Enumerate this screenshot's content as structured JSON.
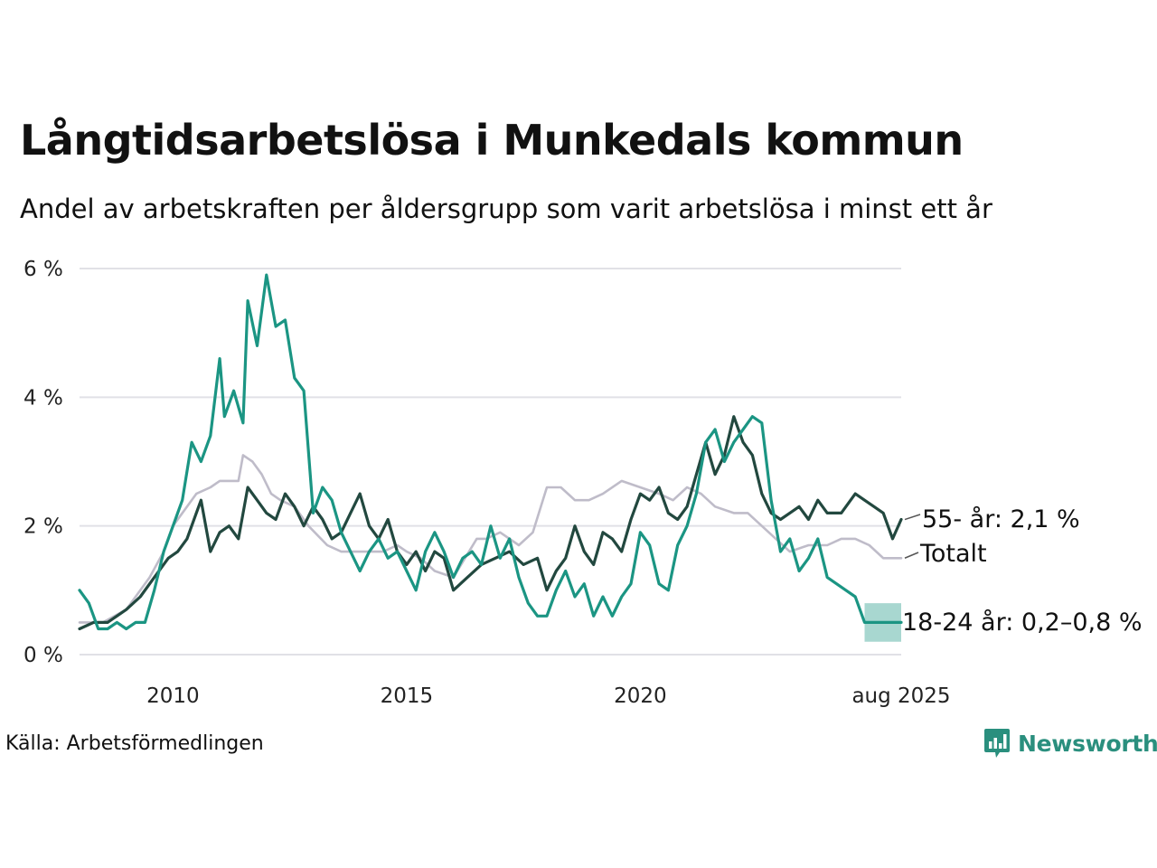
{
  "title": "Långtidsarbetslösa i Munkedals kommun",
  "subtitle": "Andel av arbetskraften per åldersgrupp som varit arbetslösa i minst ett år",
  "source": "Källa: Arbetsförmedlingen",
  "brand": "Newsworthy",
  "chart_data": {
    "type": "line",
    "title": "Långtidsarbetslösa i Munkedals kommun",
    "subtitle": "Andel av arbetskraften per åldersgrupp som varit arbetslösa i minst ett år",
    "xlabel": "",
    "ylabel": "",
    "x_range": [
      2008.0,
      2025.583
    ],
    "ylim": [
      0,
      6
    ],
    "y_ticks": [
      0,
      2,
      4,
      6
    ],
    "y_tick_labels": [
      "0 %",
      "2 %",
      "4 %",
      "6 %"
    ],
    "x_ticks": [
      2010,
      2015,
      2020,
      2025.583
    ],
    "x_tick_labels": [
      "2010",
      "2015",
      "2020",
      "aug 2025"
    ],
    "grid": true,
    "legend": "end-of-line labels",
    "colors": {
      "young": "#1b9583",
      "old": "#22483f",
      "total": "#bfbcc9",
      "band": "#1b9583"
    },
    "series": [
      {
        "key": "total",
        "name": "Totalt",
        "end_label": "Totalt",
        "points": [
          [
            2008.0,
            0.5
          ],
          [
            2008.5,
            0.5
          ],
          [
            2009.0,
            0.7
          ],
          [
            2009.5,
            1.2
          ],
          [
            2009.8,
            1.6
          ],
          [
            2010.0,
            2.0
          ],
          [
            2010.5,
            2.5
          ],
          [
            2010.8,
            2.6
          ],
          [
            2011.0,
            2.7
          ],
          [
            2011.4,
            2.7
          ],
          [
            2011.5,
            3.1
          ],
          [
            2011.7,
            3.0
          ],
          [
            2011.9,
            2.8
          ],
          [
            2012.1,
            2.5
          ],
          [
            2012.3,
            2.4
          ],
          [
            2012.6,
            2.3
          ],
          [
            2012.9,
            2.0
          ],
          [
            2013.3,
            1.7
          ],
          [
            2013.6,
            1.6
          ],
          [
            2014.0,
            1.6
          ],
          [
            2014.5,
            1.6
          ],
          [
            2014.8,
            1.7
          ],
          [
            2015.0,
            1.6
          ],
          [
            2015.3,
            1.5
          ],
          [
            2015.6,
            1.3
          ],
          [
            2016.0,
            1.2
          ],
          [
            2016.5,
            1.8
          ],
          [
            2016.7,
            1.8
          ],
          [
            2017.0,
            1.9
          ],
          [
            2017.4,
            1.7
          ],
          [
            2017.7,
            1.9
          ],
          [
            2018.0,
            2.6
          ],
          [
            2018.3,
            2.6
          ],
          [
            2018.6,
            2.4
          ],
          [
            2018.9,
            2.4
          ],
          [
            2019.2,
            2.5
          ],
          [
            2019.6,
            2.7
          ],
          [
            2020.0,
            2.6
          ],
          [
            2020.4,
            2.5
          ],
          [
            2020.7,
            2.4
          ],
          [
            2021.0,
            2.6
          ],
          [
            2021.3,
            2.5
          ],
          [
            2021.6,
            2.3
          ],
          [
            2022.0,
            2.2
          ],
          [
            2022.3,
            2.2
          ],
          [
            2022.6,
            2.0
          ],
          [
            2022.9,
            1.8
          ],
          [
            2023.2,
            1.6
          ],
          [
            2023.6,
            1.7
          ],
          [
            2024.0,
            1.7
          ],
          [
            2024.3,
            1.8
          ],
          [
            2024.6,
            1.8
          ],
          [
            2024.9,
            1.7
          ],
          [
            2025.2,
            1.5
          ],
          [
            2025.583,
            1.5
          ]
        ]
      },
      {
        "key": "old",
        "name": "55- år",
        "end_label": "55- år: 2,1 %",
        "points": [
          [
            2008.0,
            0.4
          ],
          [
            2008.3,
            0.5
          ],
          [
            2008.6,
            0.5
          ],
          [
            2009.0,
            0.7
          ],
          [
            2009.3,
            0.9
          ],
          [
            2009.6,
            1.2
          ],
          [
            2009.9,
            1.5
          ],
          [
            2010.1,
            1.6
          ],
          [
            2010.3,
            1.8
          ],
          [
            2010.5,
            2.2
          ],
          [
            2010.6,
            2.4
          ],
          [
            2010.8,
            1.6
          ],
          [
            2011.0,
            1.9
          ],
          [
            2011.2,
            2.0
          ],
          [
            2011.4,
            1.8
          ],
          [
            2011.6,
            2.6
          ],
          [
            2011.8,
            2.4
          ],
          [
            2012.0,
            2.2
          ],
          [
            2012.2,
            2.1
          ],
          [
            2012.4,
            2.5
          ],
          [
            2012.6,
            2.3
          ],
          [
            2012.8,
            2.0
          ],
          [
            2013.0,
            2.3
          ],
          [
            2013.2,
            2.1
          ],
          [
            2013.4,
            1.8
          ],
          [
            2013.6,
            1.9
          ],
          [
            2013.8,
            2.2
          ],
          [
            2014.0,
            2.5
          ],
          [
            2014.2,
            2.0
          ],
          [
            2014.4,
            1.8
          ],
          [
            2014.6,
            2.1
          ],
          [
            2014.8,
            1.6
          ],
          [
            2015.0,
            1.4
          ],
          [
            2015.2,
            1.6
          ],
          [
            2015.4,
            1.3
          ],
          [
            2015.6,
            1.6
          ],
          [
            2015.8,
            1.5
          ],
          [
            2016.0,
            1.0
          ],
          [
            2016.3,
            1.2
          ],
          [
            2016.6,
            1.4
          ],
          [
            2016.9,
            1.5
          ],
          [
            2017.2,
            1.6
          ],
          [
            2017.5,
            1.4
          ],
          [
            2017.8,
            1.5
          ],
          [
            2018.0,
            1.0
          ],
          [
            2018.2,
            1.3
          ],
          [
            2018.4,
            1.5
          ],
          [
            2018.6,
            2.0
          ],
          [
            2018.8,
            1.6
          ],
          [
            2019.0,
            1.4
          ],
          [
            2019.2,
            1.9
          ],
          [
            2019.4,
            1.8
          ],
          [
            2019.6,
            1.6
          ],
          [
            2019.8,
            2.1
          ],
          [
            2020.0,
            2.5
          ],
          [
            2020.2,
            2.4
          ],
          [
            2020.4,
            2.6
          ],
          [
            2020.6,
            2.2
          ],
          [
            2020.8,
            2.1
          ],
          [
            2021.0,
            2.3
          ],
          [
            2021.2,
            2.8
          ],
          [
            2021.4,
            3.3
          ],
          [
            2021.6,
            2.8
          ],
          [
            2021.8,
            3.1
          ],
          [
            2022.0,
            3.7
          ],
          [
            2022.2,
            3.3
          ],
          [
            2022.4,
            3.1
          ],
          [
            2022.6,
            2.5
          ],
          [
            2022.8,
            2.2
          ],
          [
            2023.0,
            2.1
          ],
          [
            2023.2,
            2.2
          ],
          [
            2023.4,
            2.3
          ],
          [
            2023.6,
            2.1
          ],
          [
            2023.8,
            2.4
          ],
          [
            2024.0,
            2.2
          ],
          [
            2024.3,
            2.2
          ],
          [
            2024.6,
            2.5
          ],
          [
            2024.8,
            2.4
          ],
          [
            2025.0,
            2.3
          ],
          [
            2025.2,
            2.2
          ],
          [
            2025.4,
            1.8
          ],
          [
            2025.583,
            2.1
          ]
        ]
      },
      {
        "key": "young",
        "name": "18-24 år",
        "end_label": "18-24 år: 0,2–0,8 %",
        "points": [
          [
            2008.0,
            1.0
          ],
          [
            2008.2,
            0.8
          ],
          [
            2008.4,
            0.4
          ],
          [
            2008.6,
            0.4
          ],
          [
            2008.8,
            0.5
          ],
          [
            2009.0,
            0.4
          ],
          [
            2009.2,
            0.5
          ],
          [
            2009.4,
            0.5
          ],
          [
            2009.6,
            1.0
          ],
          [
            2009.8,
            1.6
          ],
          [
            2010.0,
            2.0
          ],
          [
            2010.2,
            2.4
          ],
          [
            2010.4,
            3.3
          ],
          [
            2010.6,
            3.0
          ],
          [
            2010.8,
            3.4
          ],
          [
            2011.0,
            4.6
          ],
          [
            2011.1,
            3.7
          ],
          [
            2011.3,
            4.1
          ],
          [
            2011.5,
            3.6
          ],
          [
            2011.6,
            5.5
          ],
          [
            2011.8,
            4.8
          ],
          [
            2012.0,
            5.9
          ],
          [
            2012.2,
            5.1
          ],
          [
            2012.4,
            5.2
          ],
          [
            2012.6,
            4.3
          ],
          [
            2012.8,
            4.1
          ],
          [
            2013.0,
            2.2
          ],
          [
            2013.2,
            2.6
          ],
          [
            2013.4,
            2.4
          ],
          [
            2013.6,
            1.9
          ],
          [
            2013.8,
            1.6
          ],
          [
            2014.0,
            1.3
          ],
          [
            2014.2,
            1.6
          ],
          [
            2014.4,
            1.8
          ],
          [
            2014.6,
            1.5
          ],
          [
            2014.8,
            1.6
          ],
          [
            2015.0,
            1.3
          ],
          [
            2015.2,
            1.0
          ],
          [
            2015.4,
            1.6
          ],
          [
            2015.6,
            1.9
          ],
          [
            2015.8,
            1.6
          ],
          [
            2016.0,
            1.2
          ],
          [
            2016.2,
            1.5
          ],
          [
            2016.4,
            1.6
          ],
          [
            2016.6,
            1.4
          ],
          [
            2016.8,
            2.0
          ],
          [
            2017.0,
            1.5
          ],
          [
            2017.2,
            1.8
          ],
          [
            2017.4,
            1.2
          ],
          [
            2017.6,
            0.8
          ],
          [
            2017.8,
            0.6
          ],
          [
            2018.0,
            0.6
          ],
          [
            2018.2,
            1.0
          ],
          [
            2018.4,
            1.3
          ],
          [
            2018.6,
            0.9
          ],
          [
            2018.8,
            1.1
          ],
          [
            2019.0,
            0.6
          ],
          [
            2019.2,
            0.9
          ],
          [
            2019.4,
            0.6
          ],
          [
            2019.6,
            0.9
          ],
          [
            2019.8,
            1.1
          ],
          [
            2020.0,
            1.9
          ],
          [
            2020.2,
            1.7
          ],
          [
            2020.4,
            1.1
          ],
          [
            2020.6,
            1.0
          ],
          [
            2020.8,
            1.7
          ],
          [
            2021.0,
            2.0
          ],
          [
            2021.2,
            2.5
          ],
          [
            2021.4,
            3.3
          ],
          [
            2021.6,
            3.5
          ],
          [
            2021.8,
            3.0
          ],
          [
            2022.0,
            3.3
          ],
          [
            2022.2,
            3.5
          ],
          [
            2022.4,
            3.7
          ],
          [
            2022.6,
            3.6
          ],
          [
            2022.8,
            2.4
          ],
          [
            2023.0,
            1.6
          ],
          [
            2023.2,
            1.8
          ],
          [
            2023.4,
            1.3
          ],
          [
            2023.6,
            1.5
          ],
          [
            2023.8,
            1.8
          ],
          [
            2024.0,
            1.2
          ],
          [
            2024.2,
            1.1
          ],
          [
            2024.4,
            1.0
          ],
          [
            2024.6,
            0.9
          ],
          [
            2024.8,
            0.5
          ],
          [
            2025.0,
            0.5
          ],
          [
            2025.3,
            0.5
          ],
          [
            2025.583,
            0.5
          ]
        ]
      }
    ],
    "band": {
      "series_key": "young",
      "points": [
        [
          2024.8,
          0.2,
          0.8
        ],
        [
          2025.583,
          0.2,
          0.8
        ]
      ]
    }
  }
}
